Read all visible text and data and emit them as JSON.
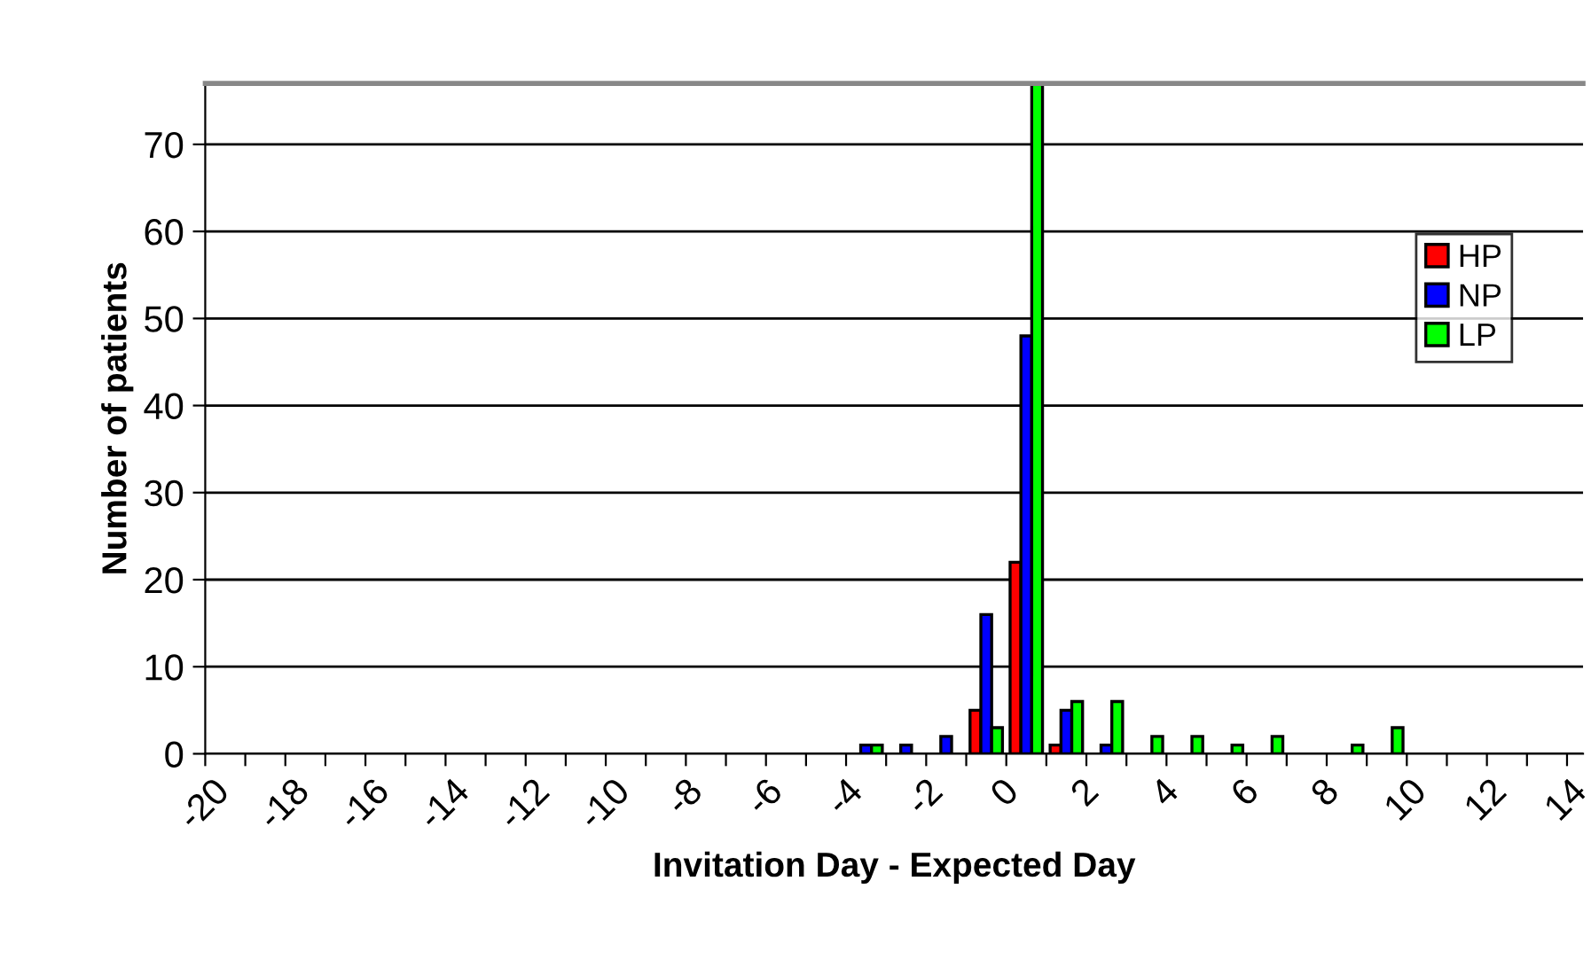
{
  "chart_data": {
    "type": "bar",
    "xlabel": "Invitation Day - Expected Day",
    "ylabel": "Number of patients",
    "x": [
      -3.5,
      -2.5,
      -1.5,
      -0.5,
      0.5,
      1.5,
      2.5,
      3.5,
      4.5,
      5.5,
      6.5,
      8.5,
      9.5
    ],
    "series": [
      {
        "name": "HP",
        "color": "#ff0000",
        "values": [
          null,
          null,
          null,
          5,
          22,
          1,
          null,
          null,
          null,
          null,
          null,
          null,
          null
        ]
      },
      {
        "name": "NP",
        "color": "#0000ff",
        "values": [
          1,
          1,
          2,
          16,
          48,
          5,
          1,
          null,
          null,
          null,
          null,
          null,
          null
        ]
      },
      {
        "name": "LP",
        "color": "#00ff00",
        "values": [
          1,
          null,
          null,
          3,
          77,
          6,
          6,
          2,
          2,
          1,
          2,
          1,
          3
        ]
      }
    ],
    "xlim": [
      -20,
      14.4
    ],
    "xticks": [
      -20,
      {
        "value": -19,
        "label": null
      },
      -18,
      {
        "value": -17,
        "label": null
      },
      -16,
      {
        "value": -15,
        "label": null
      },
      -14,
      {
        "value": -13,
        "label": null
      },
      -12,
      {
        "value": -11,
        "label": null
      },
      -10,
      {
        "value": -9,
        "label": null
      },
      -8,
      {
        "value": -7,
        "label": null
      },
      -6,
      {
        "value": -5,
        "label": null
      },
      -4,
      {
        "value": -3,
        "label": null
      },
      -2,
      {
        "value": -1,
        "label": null
      },
      0,
      {
        "value": 1,
        "label": null
      },
      2,
      {
        "value": 3,
        "label": null
      },
      4,
      {
        "value": 5,
        "label": null
      },
      6,
      {
        "value": 7,
        "label": null
      },
      8,
      {
        "value": 9,
        "label": null
      },
      10,
      {
        "value": 11,
        "label": null
      },
      12,
      {
        "value": 13,
        "label": null
      },
      14
    ],
    "ylim": [
      0,
      77
    ],
    "yticks": [
      0,
      10,
      20,
      30,
      40,
      50,
      60,
      70
    ],
    "grid": "y",
    "legend": "right"
  }
}
